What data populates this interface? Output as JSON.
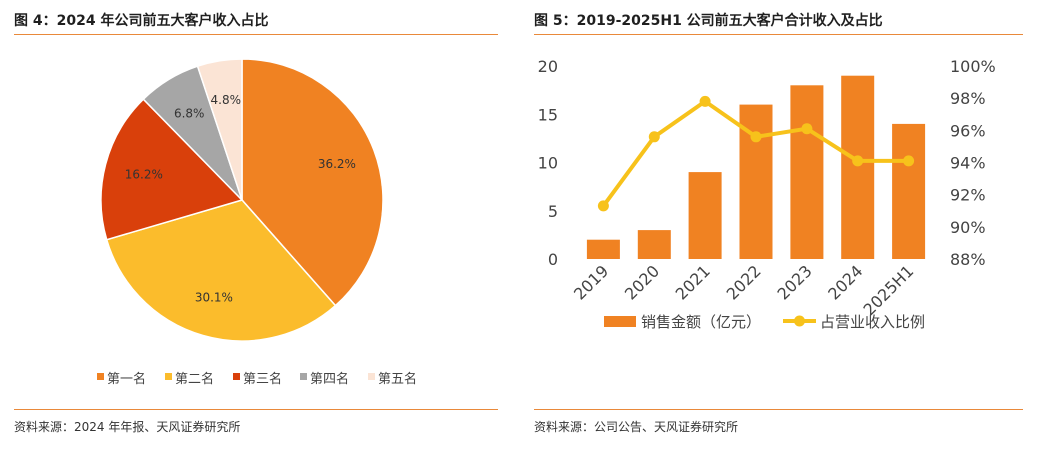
{
  "left": {
    "title": "图 4：2024 年公司前五大客户收入占比",
    "source": "资料来源：2024 年年报、天风证券研究所"
  },
  "right": {
    "title": "图 5：2019-2025H1 公司前五大客户合计收入及占比",
    "source": "资料来源：公司公告、天风证券研究所"
  },
  "chart_data": [
    {
      "type": "pie",
      "categories": [
        "第一名",
        "第二名",
        "第三名",
        "第四名",
        "第五名"
      ],
      "values": [
        36.2,
        30.1,
        16.2,
        6.8,
        4.8
      ],
      "labels": [
        "36.2%",
        "30.1%",
        "16.2%",
        "6.8%",
        "4.8%"
      ],
      "colors": [
        "#f08222",
        "#fbbc2c",
        "#d9400b",
        "#a6a6a6",
        "#fbe4d5"
      ],
      "legend_position": "bottom"
    },
    {
      "type": "bar",
      "categories": [
        "2019",
        "2020",
        "2021",
        "2022",
        "2023",
        "2024",
        "2025H1"
      ],
      "series": [
        {
          "name": "销售金额（亿元）",
          "type": "bar",
          "axis": "left",
          "values": [
            2.0,
            3.0,
            9.0,
            16.0,
            18.0,
            19.0,
            14.0
          ],
          "color": "#f08222"
        },
        {
          "name": "占营业收入比例",
          "type": "line",
          "axis": "right",
          "values": [
            0.913,
            0.956,
            0.978,
            0.956,
            0.961,
            0.941,
            0.941
          ],
          "color": "#f7c21b"
        }
      ],
      "ylim": [
        0,
        20
      ],
      "y_ticks": [
        "0",
        "5",
        "10",
        "15",
        "20"
      ],
      "y2lim": [
        0.88,
        1.0
      ],
      "y2_ticks": [
        "88%",
        "90%",
        "92%",
        "94%",
        "96%",
        "98%",
        "100%"
      ],
      "legend_position": "bottom",
      "grid": false
    }
  ]
}
